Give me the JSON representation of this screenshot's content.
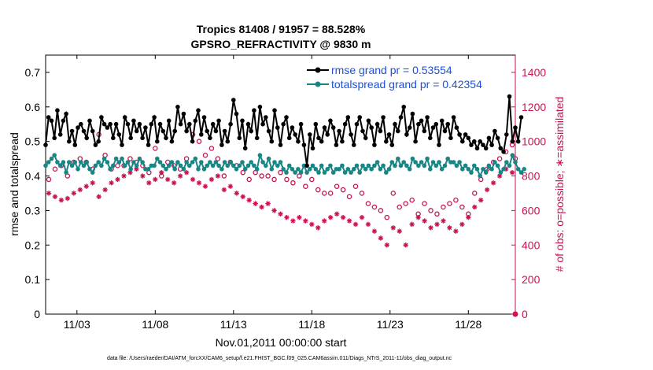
{
  "colors": {
    "rmse": "#000000",
    "spread": "#1a8585",
    "obs": "#cc1155",
    "legend_text": "#1a50e0"
  },
  "chart_data": {
    "type": "line",
    "title_line1": "Tropics 81408 / 91957 = 88.528%",
    "title_line2": "GPSRO_REFRACTIVITY @ 9830 m",
    "xlabel": "Nov.01,2011 00:00:00 start",
    "ylabel_left": "rmse and totalspread",
    "ylabel_right": "# of obs: o=possible; ∗=assimilated",
    "footer": "data file: /Users/raeder/DAI/ATM_forcXX/CAM6_setup/f.e21.FHIST_BGC.f09_025.CAM6assim.011/Diags_NTrS_2011-11/obs_diag_output.nc",
    "xlim": [
      1.0,
      31.0
    ],
    "ylim_left": [
      0,
      0.75
    ],
    "ylim_right": [
      0,
      1500
    ],
    "x_ticks": [
      {
        "value": 3.0,
        "label": "11/03"
      },
      {
        "value": 8.0,
        "label": "11/08"
      },
      {
        "value": 13.0,
        "label": "11/13"
      },
      {
        "value": 18.0,
        "label": "11/18"
      },
      {
        "value": 23.0,
        "label": "11/23"
      },
      {
        "value": 28.0,
        "label": "11/28"
      }
    ],
    "y_ticks_left": [
      {
        "value": 0,
        "label": "0"
      },
      {
        "value": 0.1,
        "label": "0.1"
      },
      {
        "value": 0.2,
        "label": "0.2"
      },
      {
        "value": 0.3,
        "label": "0.3"
      },
      {
        "value": 0.4,
        "label": "0.4"
      },
      {
        "value": 0.5,
        "label": "0.5"
      },
      {
        "value": 0.6,
        "label": "0.6"
      },
      {
        "value": 0.7,
        "label": "0.7"
      }
    ],
    "y_ticks_right": [
      {
        "value": 0,
        "label": "0"
      },
      {
        "value": 200,
        "label": "200"
      },
      {
        "value": 400,
        "label": "400"
      },
      {
        "value": 600,
        "label": "600"
      },
      {
        "value": 800,
        "label": "800"
      },
      {
        "value": 1000,
        "label": "1000"
      },
      {
        "value": 1200,
        "label": "1200"
      },
      {
        "value": 1400,
        "label": "1400"
      }
    ],
    "series": [
      {
        "name": "rmse grand pr = 0.53554",
        "axis": "left",
        "style": "line-dot",
        "values": [
          0.49,
          0.57,
          0.56,
          0.51,
          0.59,
          0.52,
          0.56,
          0.58,
          0.5,
          0.53,
          0.49,
          0.54,
          0.55,
          0.53,
          0.51,
          0.56,
          0.53,
          0.49,
          0.5,
          0.57,
          0.55,
          0.54,
          0.55,
          0.51,
          0.55,
          0.52,
          0.49,
          0.57,
          0.55,
          0.51,
          0.56,
          0.53,
          0.55,
          0.51,
          0.54,
          0.49,
          0.55,
          0.57,
          0.5,
          0.55,
          0.53,
          0.51,
          0.56,
          0.5,
          0.53,
          0.6,
          0.55,
          0.58,
          0.53,
          0.55,
          0.5,
          0.56,
          0.59,
          0.52,
          0.57,
          0.53,
          0.51,
          0.55,
          0.53,
          0.56,
          0.49,
          0.53,
          0.5,
          0.55,
          0.62,
          0.58,
          0.51,
          0.56,
          0.48,
          0.55,
          0.53,
          0.59,
          0.51,
          0.6,
          0.55,
          0.57,
          0.53,
          0.5,
          0.59,
          0.54,
          0.49,
          0.55,
          0.57,
          0.51,
          0.54,
          0.52,
          0.5,
          0.55,
          0.49,
          0.43,
          0.52,
          0.48,
          0.55,
          0.51,
          0.5,
          0.54,
          0.52,
          0.56,
          0.54,
          0.49,
          0.53,
          0.5,
          0.55,
          0.57,
          0.52,
          0.49,
          0.55,
          0.57,
          0.53,
          0.51,
          0.56,
          0.54,
          0.49,
          0.55,
          0.53,
          0.57,
          0.5,
          0.52,
          0.49,
          0.55,
          0.53,
          0.57,
          0.6,
          0.52,
          0.54,
          0.58,
          0.5,
          0.55,
          0.56,
          0.53,
          0.57,
          0.51,
          0.54,
          0.55,
          0.49,
          0.56,
          0.53,
          0.55,
          0.51,
          0.57,
          0.54,
          0.52,
          0.5,
          0.52,
          0.51,
          0.49,
          0.5,
          0.48,
          0.5,
          0.49,
          0.48,
          0.51,
          0.49,
          0.53,
          0.51,
          0.48,
          0.47,
          0.52,
          0.63,
          0.5,
          0.54,
          0.5,
          0.57
        ],
        "start_day": 1.0,
        "step_days": 0.1875
      },
      {
        "name": "totalspread grand pr = 0.42354",
        "axis": "left",
        "style": "line-dot",
        "values": [
          0.43,
          0.44,
          0.45,
          0.46,
          0.44,
          0.43,
          0.44,
          0.41,
          0.44,
          0.43,
          0.44,
          0.42,
          0.44,
          0.43,
          0.44,
          0.42,
          0.41,
          0.43,
          0.44,
          0.43,
          0.45,
          0.44,
          0.42,
          0.43,
          0.45,
          0.44,
          0.45,
          0.43,
          0.44,
          0.42,
          0.44,
          0.43,
          0.45,
          0.44,
          0.42,
          0.42,
          0.43,
          0.43,
          0.45,
          0.44,
          0.43,
          0.42,
          0.43,
          0.44,
          0.42,
          0.44,
          0.43,
          0.42,
          0.44,
          0.43,
          0.44,
          0.45,
          0.42,
          0.44,
          0.42,
          0.43,
          0.44,
          0.43,
          0.44,
          0.43,
          0.42,
          0.44,
          0.43,
          0.44,
          0.43,
          0.42,
          0.43,
          0.44,
          0.42,
          0.43,
          0.44,
          0.43,
          0.42,
          0.46,
          0.44,
          0.43,
          0.45,
          0.42,
          0.44,
          0.43,
          0.44,
          0.42,
          0.41,
          0.43,
          0.42,
          0.41,
          0.42,
          0.41,
          0.43,
          0.41,
          0.42,
          0.43,
          0.42,
          0.41,
          0.43,
          0.41,
          0.42,
          0.43,
          0.41,
          0.42,
          0.42,
          0.43,
          0.41,
          0.42,
          0.41,
          0.42,
          0.43,
          0.41,
          0.43,
          0.42,
          0.43,
          0.42,
          0.43,
          0.44,
          0.42,
          0.43,
          0.41,
          0.42,
          0.44,
          0.43,
          0.45,
          0.43,
          0.44,
          0.43,
          0.42,
          0.45,
          0.44,
          0.43,
          0.44,
          0.43,
          0.45,
          0.42,
          0.44,
          0.43,
          0.44,
          0.42,
          0.43,
          0.45,
          0.44,
          0.44,
          0.43,
          0.44,
          0.42,
          0.43,
          0.42,
          0.41,
          0.43,
          0.42,
          0.4,
          0.42,
          0.41,
          0.43,
          0.42,
          0.44,
          0.43,
          0.41,
          0.42,
          0.44,
          0.43,
          0.46,
          0.44,
          0.42,
          0.41,
          0.42
        ],
        "start_day": 1.0,
        "step_days": 0.1875
      },
      {
        "name": "possible",
        "axis": "right",
        "style": "circle",
        "points": [
          [
            1.2,
            780
          ],
          [
            1.6,
            840
          ],
          [
            2.0,
            860
          ],
          [
            2.4,
            800
          ],
          [
            2.8,
            880
          ],
          [
            3.2,
            900
          ],
          [
            3.6,
            880
          ],
          [
            4.0,
            840
          ],
          [
            4.4,
            1040
          ],
          [
            4.8,
            920
          ],
          [
            5.2,
            840
          ],
          [
            5.6,
            860
          ],
          [
            6.0,
            860
          ],
          [
            6.4,
            900
          ],
          [
            6.8,
            880
          ],
          [
            7.2,
            860
          ],
          [
            7.6,
            820
          ],
          [
            8.0,
            960
          ],
          [
            8.4,
            800
          ],
          [
            8.8,
            880
          ],
          [
            9.2,
            860
          ],
          [
            9.6,
            840
          ],
          [
            10.0,
            900
          ],
          [
            10.4,
            1040
          ],
          [
            10.8,
            1000
          ],
          [
            11.2,
            920
          ],
          [
            11.6,
            960
          ],
          [
            12.0,
            900
          ],
          [
            12.4,
            800
          ],
          [
            12.8,
            880
          ],
          [
            13.2,
            860
          ],
          [
            13.6,
            820
          ],
          [
            14.0,
            780
          ],
          [
            14.4,
            820
          ],
          [
            14.8,
            800
          ],
          [
            15.2,
            800
          ],
          [
            15.6,
            780
          ],
          [
            16.0,
            820
          ],
          [
            16.4,
            780
          ],
          [
            16.8,
            760
          ],
          [
            17.2,
            800
          ],
          [
            17.6,
            740
          ],
          [
            18.0,
            780
          ],
          [
            18.4,
            720
          ],
          [
            18.8,
            700
          ],
          [
            19.2,
            700
          ],
          [
            19.6,
            740
          ],
          [
            20.0,
            720
          ],
          [
            20.4,
            680
          ],
          [
            20.8,
            740
          ],
          [
            21.2,
            700
          ],
          [
            21.6,
            640
          ],
          [
            22.0,
            620
          ],
          [
            22.4,
            600
          ],
          [
            22.8,
            560
          ],
          [
            23.2,
            700
          ],
          [
            23.6,
            620
          ],
          [
            24.0,
            640
          ],
          [
            24.4,
            660
          ],
          [
            24.8,
            580
          ],
          [
            25.2,
            640
          ],
          [
            25.6,
            600
          ],
          [
            26.0,
            580
          ],
          [
            26.4,
            620
          ],
          [
            26.8,
            640
          ],
          [
            27.2,
            660
          ],
          [
            27.6,
            620
          ],
          [
            28.0,
            580
          ],
          [
            28.4,
            700
          ],
          [
            28.8,
            780
          ],
          [
            29.2,
            840
          ],
          [
            29.6,
            880
          ],
          [
            30.0,
            900
          ],
          [
            30.4,
            940
          ],
          [
            30.8,
            980
          ],
          [
            31.0,
            900
          ]
        ]
      },
      {
        "name": "assimilated",
        "axis": "right",
        "style": "asterisk",
        "points": [
          [
            1.2,
            700
          ],
          [
            1.6,
            680
          ],
          [
            2.0,
            660
          ],
          [
            2.4,
            670
          ],
          [
            2.8,
            700
          ],
          [
            3.2,
            720
          ],
          [
            3.6,
            740
          ],
          [
            4.0,
            760
          ],
          [
            4.4,
            680
          ],
          [
            4.8,
            720
          ],
          [
            5.2,
            760
          ],
          [
            5.6,
            780
          ],
          [
            6.0,
            800
          ],
          [
            6.4,
            820
          ],
          [
            6.8,
            840
          ],
          [
            7.2,
            800
          ],
          [
            7.6,
            760
          ],
          [
            8.0,
            780
          ],
          [
            8.4,
            820
          ],
          [
            8.8,
            780
          ],
          [
            9.2,
            760
          ],
          [
            9.6,
            800
          ],
          [
            10.0,
            820
          ],
          [
            10.4,
            780
          ],
          [
            10.8,
            760
          ],
          [
            11.2,
            740
          ],
          [
            11.6,
            780
          ],
          [
            12.0,
            800
          ],
          [
            12.4,
            720
          ],
          [
            12.8,
            740
          ],
          [
            13.2,
            700
          ],
          [
            13.6,
            680
          ],
          [
            14.0,
            660
          ],
          [
            14.4,
            640
          ],
          [
            14.8,
            620
          ],
          [
            15.2,
            640
          ],
          [
            15.6,
            600
          ],
          [
            16.0,
            580
          ],
          [
            16.4,
            560
          ],
          [
            16.8,
            540
          ],
          [
            17.2,
            560
          ],
          [
            17.6,
            540
          ],
          [
            18.0,
            520
          ],
          [
            18.4,
            500
          ],
          [
            18.8,
            540
          ],
          [
            19.2,
            560
          ],
          [
            19.6,
            580
          ],
          [
            20.0,
            560
          ],
          [
            20.4,
            540
          ],
          [
            20.8,
            520
          ],
          [
            21.2,
            560
          ],
          [
            21.6,
            520
          ],
          [
            22.0,
            480
          ],
          [
            22.4,
            440
          ],
          [
            22.8,
            400
          ],
          [
            23.2,
            500
          ],
          [
            23.6,
            480
          ],
          [
            24.0,
            400
          ],
          [
            24.4,
            520
          ],
          [
            24.8,
            560
          ],
          [
            25.2,
            540
          ],
          [
            25.6,
            500
          ],
          [
            26.0,
            520
          ],
          [
            26.4,
            540
          ],
          [
            26.8,
            500
          ],
          [
            27.2,
            480
          ],
          [
            27.6,
            520
          ],
          [
            28.0,
            560
          ],
          [
            28.4,
            620
          ],
          [
            28.8,
            660
          ],
          [
            29.2,
            720
          ],
          [
            29.6,
            760
          ],
          [
            30.0,
            800
          ],
          [
            30.4,
            840
          ],
          [
            30.8,
            820
          ]
        ]
      }
    ]
  }
}
